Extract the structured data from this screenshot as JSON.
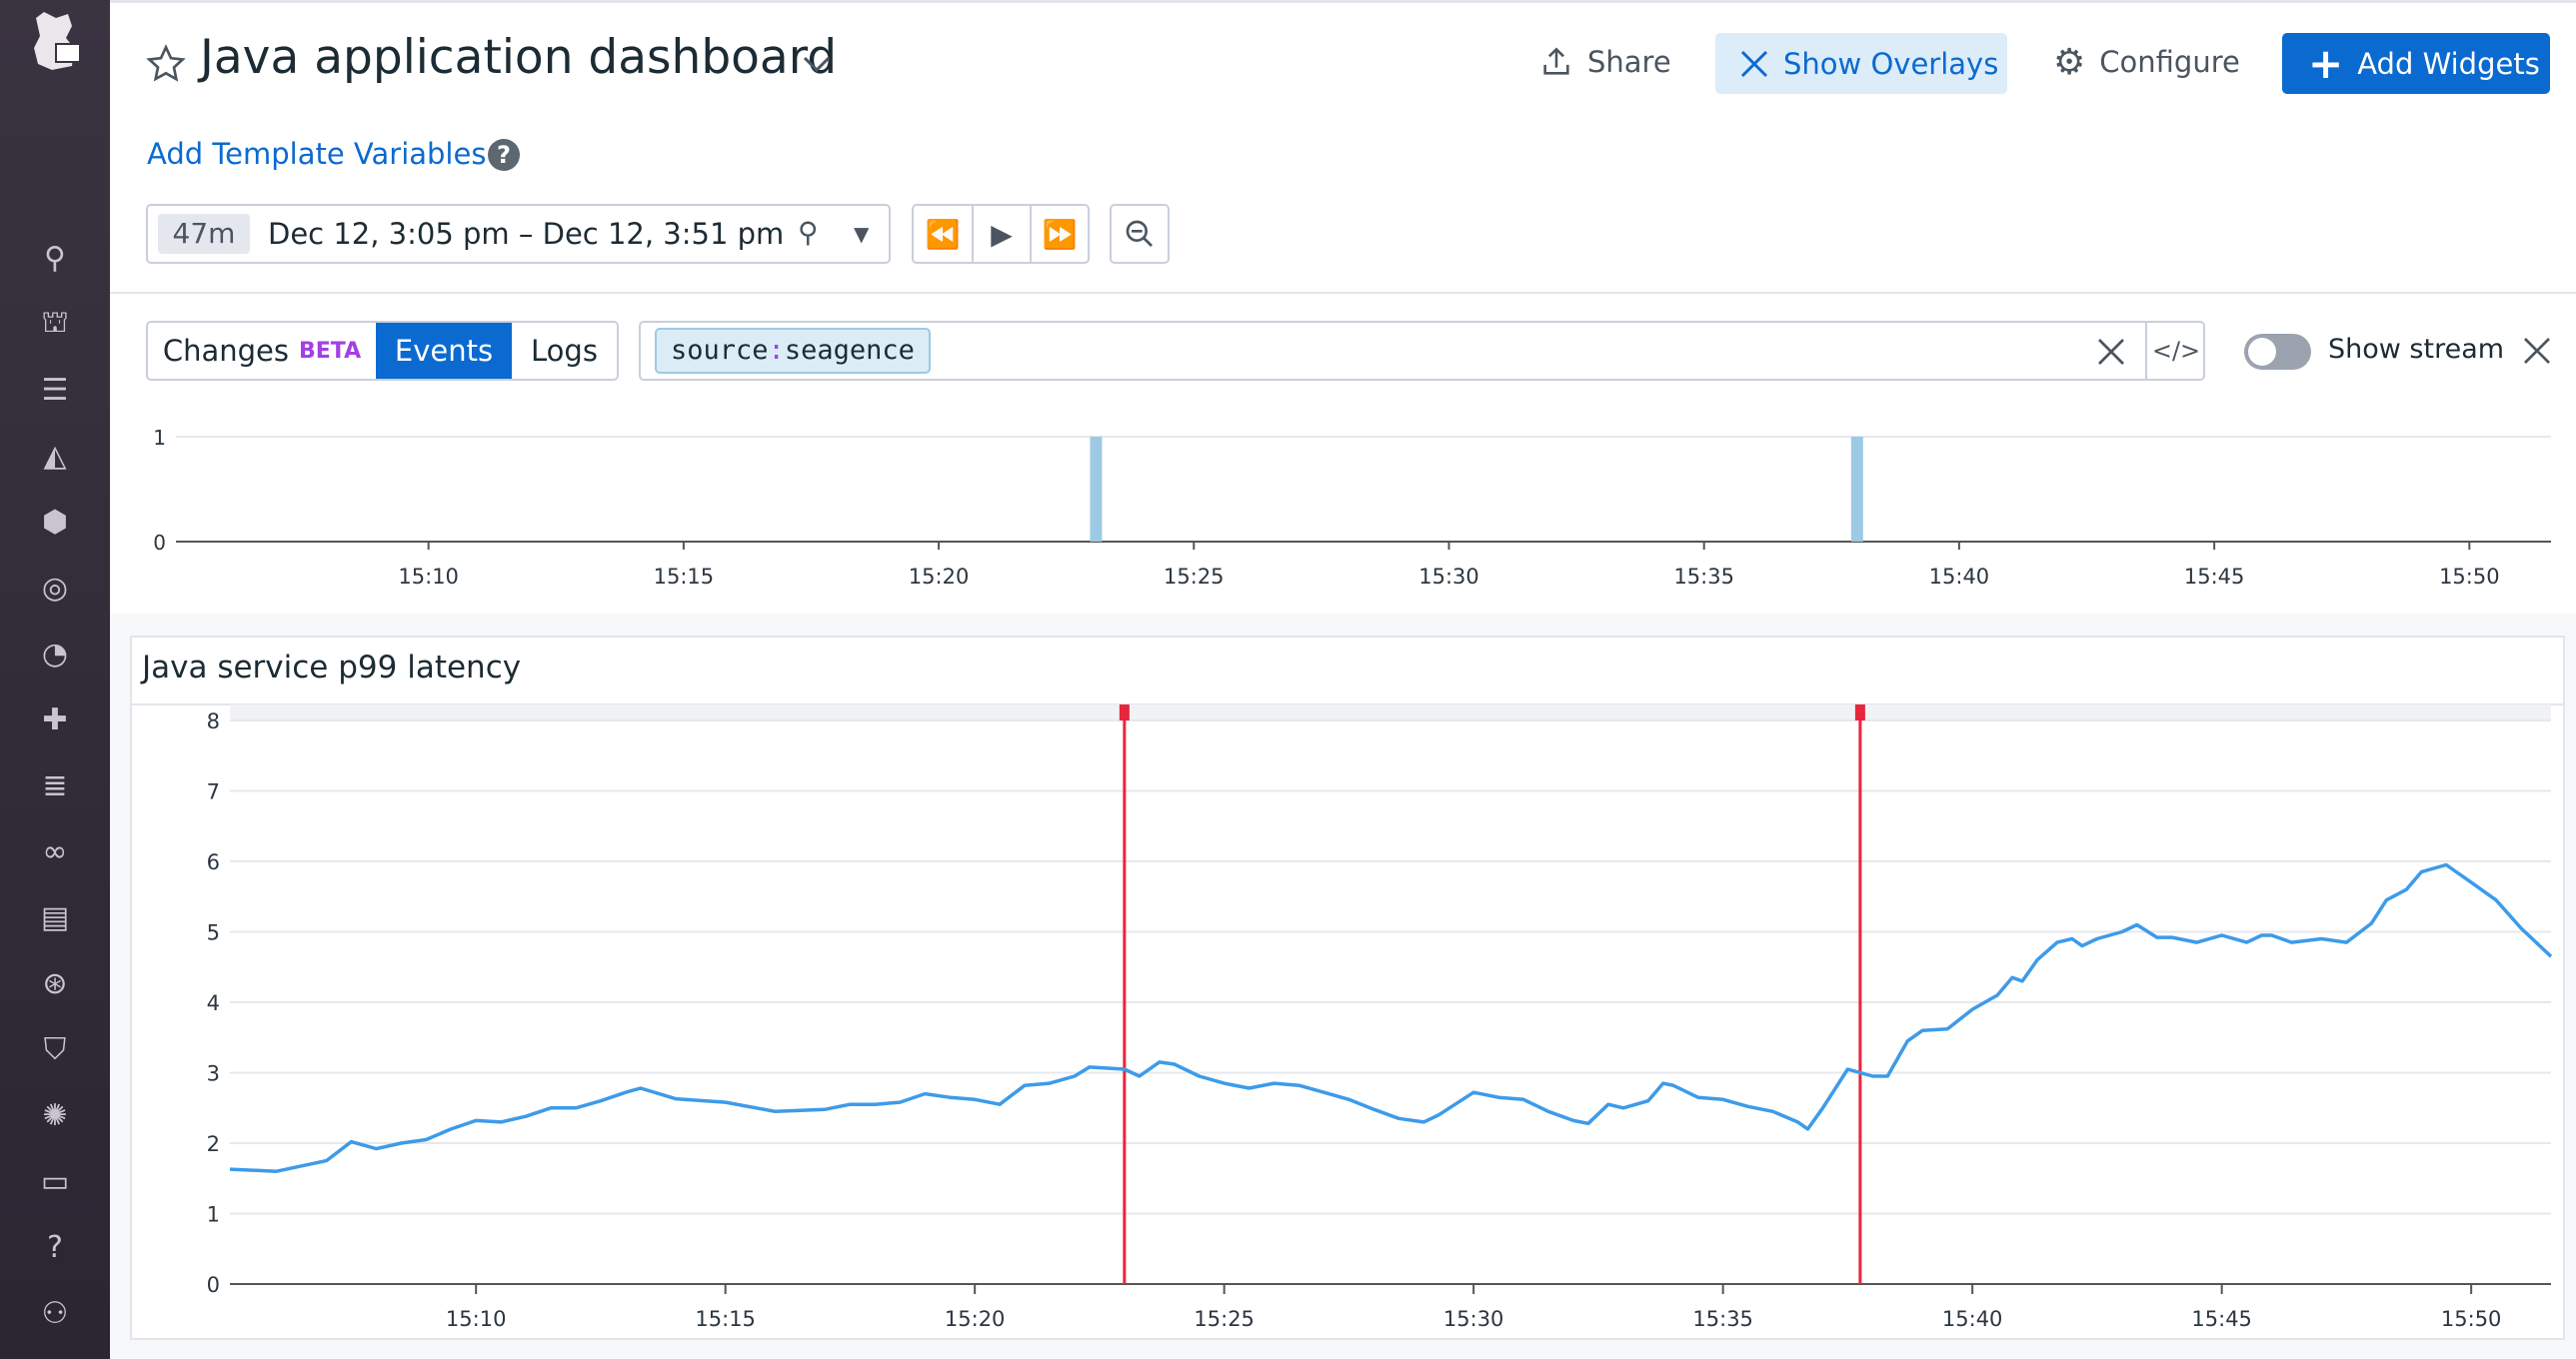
{
  "header": {
    "title": "Java application dashboard",
    "share_label": "Share",
    "show_overlays_label": "Show Overlays",
    "configure_label": "Configure",
    "add_widgets_label": "Add Widgets",
    "add_template_variables": "Add Template Variables"
  },
  "timepicker": {
    "duration": "47m",
    "range": "Dec 12, 3:05 pm – Dec 12, 3:51 pm"
  },
  "overlay_bar": {
    "tabs": [
      {
        "label": "Changes",
        "badge": "BETA"
      },
      {
        "label": "Events",
        "active": true
      },
      {
        "label": "Logs"
      }
    ],
    "query_key": "source",
    "query_sep": ":",
    "query_value": "seagence",
    "show_stream_label": "Show stream",
    "show_stream_on": false
  },
  "colors": {
    "accent": "#0b6ad0",
    "series": "#3d9be9",
    "event_marker": "#e8253d",
    "event_bar": "#9ccae4",
    "beta": "#a23fe6"
  },
  "sidebar": {
    "icons": [
      "search-icon",
      "binoculars-icon",
      "list-icon",
      "dashboard-chart-icon",
      "infrastructure-icon",
      "monitors-icon",
      "apm-gauge-icon",
      "integrations-icon",
      "logs-icon",
      "synthetics-icon",
      "notebooks-icon",
      "watchdog-icon",
      "security-icon",
      "bits-icon",
      "chat-icon",
      "help-icon",
      "team-icon"
    ]
  },
  "chart_data": [
    {
      "type": "bar",
      "title": "",
      "ylim": [
        0,
        1
      ],
      "yticks": [
        "0",
        "1"
      ],
      "xlim": [
        "15:05:03",
        "15:51:36"
      ],
      "xticks": [
        "15:10",
        "15:15",
        "15:20",
        "15:25",
        "15:30",
        "15:35",
        "15:40",
        "15:45",
        "15:50"
      ],
      "events": [
        {
          "x": "15:23:05",
          "value": 1
        },
        {
          "x": "15:38:00",
          "value": 1
        }
      ]
    },
    {
      "type": "line",
      "title": "Java service p99 latency",
      "ylim": [
        0,
        8
      ],
      "yticks": [
        "0",
        "1",
        "2",
        "3",
        "4",
        "5",
        "6",
        "7",
        "8"
      ],
      "xlim": [
        "15:05:04",
        "15:51:36"
      ],
      "xticks": [
        "15:10",
        "15:15",
        "15:20",
        "15:25",
        "15:30",
        "15:35",
        "15:40",
        "15:45",
        "15:50"
      ],
      "grid": true,
      "event_markers": [
        "15:23:00",
        "15:37:45"
      ],
      "x": [
        "15:05:04",
        "15:06:00",
        "15:07:00",
        "15:07:30",
        "15:08:00",
        "15:08:30",
        "15:09:00",
        "15:09:30",
        "15:10:00",
        "15:10:30",
        "15:11:00",
        "15:11:30",
        "15:12:00",
        "15:12:30",
        "15:13:00",
        "15:13:18",
        "15:14:00",
        "15:15:00",
        "15:16:00",
        "15:17:00",
        "15:17:30",
        "15:18:00",
        "15:18:30",
        "15:19:00",
        "15:19:30",
        "15:20:00",
        "15:20:30",
        "15:21:00",
        "15:21:30",
        "15:22:00",
        "15:22:18",
        "15:23:00",
        "15:23:18",
        "15:23:42",
        "15:24:00",
        "15:24:30",
        "15:25:00",
        "15:25:30",
        "15:26:00",
        "15:26:30",
        "15:27:00",
        "15:27:30",
        "15:28:00",
        "15:28:30",
        "15:29:00",
        "15:29:18",
        "15:30:00",
        "15:30:30",
        "15:31:00",
        "15:31:30",
        "15:32:00",
        "15:32:18",
        "15:32:42",
        "15:33:00",
        "15:33:30",
        "15:33:48",
        "15:34:00",
        "15:34:30",
        "15:35:00",
        "15:35:30",
        "15:36:00",
        "15:36:30",
        "15:36:42",
        "15:37:00",
        "15:37:30",
        "15:38:00",
        "15:38:18",
        "15:38:42",
        "15:39:00",
        "15:39:30",
        "15:40:00",
        "15:40:30",
        "15:40:48",
        "15:41:00",
        "15:41:18",
        "15:41:42",
        "15:42:00",
        "15:42:12",
        "15:42:30",
        "15:43:00",
        "15:43:18",
        "15:43:42",
        "15:44:00",
        "15:44:30",
        "15:45:00",
        "15:45:30",
        "15:45:48",
        "15:46:00",
        "15:46:24",
        "15:47:00",
        "15:47:30",
        "15:48:00",
        "15:48:18",
        "15:48:42",
        "15:49:00",
        "15:49:30",
        "15:50:00",
        "15:50:30",
        "15:51:00",
        "15:51:36"
      ],
      "y": [
        1.63,
        1.6,
        1.75,
        2.02,
        1.92,
        2.0,
        2.05,
        2.2,
        2.32,
        2.3,
        2.38,
        2.5,
        2.5,
        2.6,
        2.72,
        2.78,
        2.63,
        2.58,
        2.45,
        2.48,
        2.55,
        2.55,
        2.58,
        2.7,
        2.65,
        2.62,
        2.55,
        2.82,
        2.85,
        2.95,
        3.08,
        3.05,
        2.95,
        3.15,
        3.12,
        2.95,
        2.85,
        2.78,
        2.85,
        2.82,
        2.72,
        2.62,
        2.48,
        2.35,
        2.3,
        2.4,
        2.72,
        2.65,
        2.62,
        2.45,
        2.32,
        2.28,
        2.55,
        2.5,
        2.6,
        2.85,
        2.82,
        2.65,
        2.62,
        2.52,
        2.45,
        2.3,
        2.2,
        2.5,
        3.05,
        2.95,
        2.95,
        3.45,
        3.6,
        3.62,
        3.9,
        4.1,
        4.35,
        4.3,
        4.6,
        4.85,
        4.9,
        4.8,
        4.9,
        5.0,
        5.1,
        4.92,
        4.92,
        4.85,
        4.95,
        4.85,
        4.95,
        4.95,
        4.85,
        4.9,
        4.85,
        5.12,
        5.45,
        5.6,
        5.85,
        5.95,
        5.7,
        5.45,
        5.05,
        4.65
      ]
    }
  ]
}
